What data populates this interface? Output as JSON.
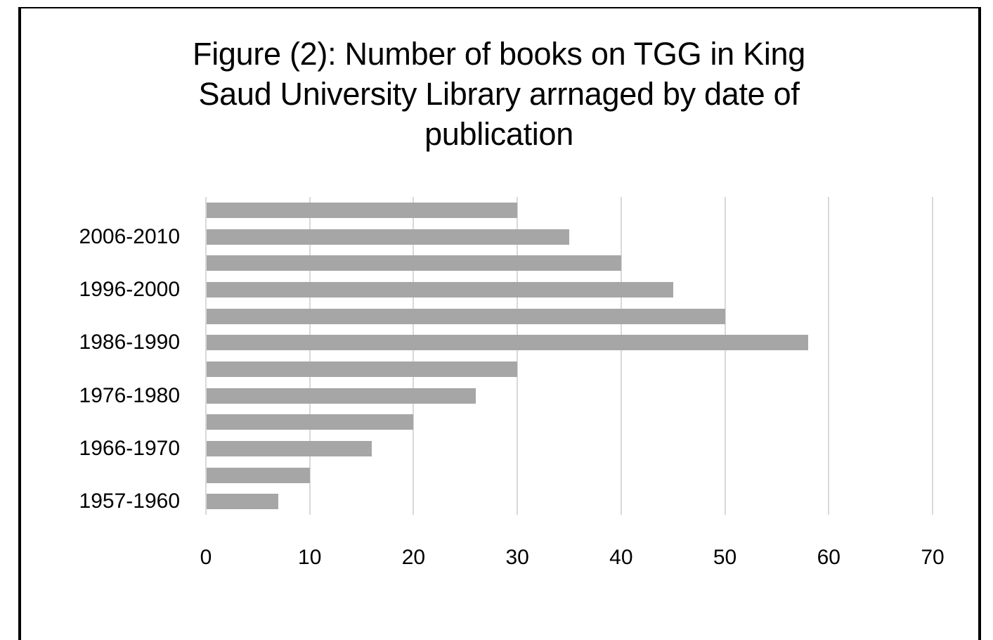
{
  "chart_data": {
    "type": "bar",
    "orientation": "horizontal",
    "title": "Figure (2): Number of books on TGG in King Saud University Library arrnaged by date of publication",
    "title_lines": [
      "Figure (2): Number of books on TGG in King",
      "Saud University Library arrnaged by date of",
      "publication"
    ],
    "categories": [
      "1957-1960",
      "",
      "1966-1970",
      "",
      "1976-1980",
      "",
      "1986-1990",
      "",
      "1996-2000",
      "",
      "2006-2010",
      ""
    ],
    "values": [
      7,
      10,
      16,
      20,
      26,
      30,
      58,
      50,
      45,
      40,
      35,
      30
    ],
    "xlabel": "",
    "ylabel": "",
    "xlim": [
      0,
      70
    ],
    "xticks": [
      "0",
      "10",
      "20",
      "30",
      "40",
      "50",
      "60",
      "70"
    ],
    "grid": true,
    "legend": null,
    "colors": {
      "bar": "#a6a6a6",
      "grid": "#d9d9d9",
      "frame": "#000000"
    }
  }
}
